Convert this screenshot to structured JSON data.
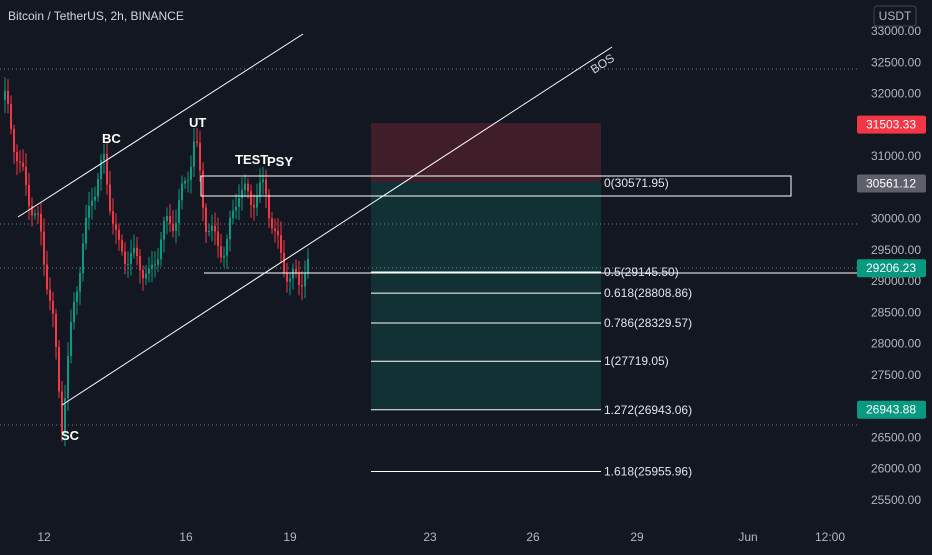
{
  "header": {
    "symbol_title": "Bitcoin / TetherUS, 2h, BINANCE",
    "currency_label": "USDT"
  },
  "price_axis": {
    "min": 25000,
    "max": 33300,
    "ticks": [
      "33000.00",
      "32500.00",
      "32000.00",
      "31500.00",
      "31000.00",
      "30500.00",
      "30000.00",
      "29500.00",
      "29000.00",
      "28500.00",
      "28000.00",
      "27500.00",
      "27000.00",
      "26500.00",
      "26000.00",
      "25500.00"
    ]
  },
  "time_axis": {
    "labels": [
      "12",
      "16",
      "19",
      "23",
      "26",
      "29",
      "Jun",
      "12:00"
    ]
  },
  "price_tags": [
    {
      "text": "31503.33",
      "price": 31503.33,
      "color": "#f23645"
    },
    {
      "text": "30561.12",
      "price": 30561.12,
      "color": "#5d606b"
    },
    {
      "text": "29206.23",
      "price": 29206.23,
      "color": "#089981"
    },
    {
      "text": "26943.88",
      "price": 26943.88,
      "color": "#089981"
    }
  ],
  "fib_levels": [
    {
      "label": "0(30571.95)",
      "price": 30571.95
    },
    {
      "label": "0.5(29145.50)",
      "price": 29145.5
    },
    {
      "label": "0.618(28808.86)",
      "price": 28808.86
    },
    {
      "label": "0.786(28329.57)",
      "price": 28329.57
    },
    {
      "label": "1(27719.05)",
      "price": 27719.05
    },
    {
      "label": "1.272(26943.06)",
      "price": 26943.06
    },
    {
      "label": "1.618(25955.96)",
      "price": 25955.96
    }
  ],
  "annotations": [
    "BC",
    "UT",
    "TEST",
    "PSY",
    "SC",
    "BOS"
  ],
  "position": {
    "stop_price": 31503.33,
    "entry_price": 30561.12,
    "target_price": 26943.88
  },
  "colors": {
    "up": "#089981",
    "down": "#f23645",
    "background": "#131722"
  }
}
